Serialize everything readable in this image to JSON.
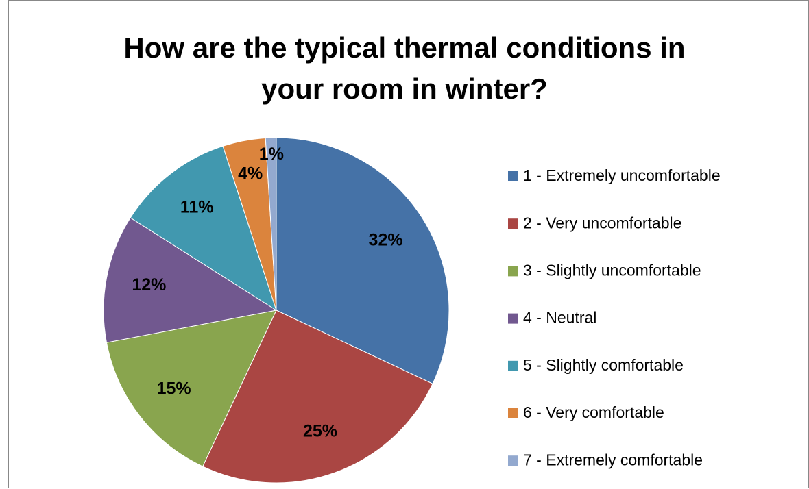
{
  "chart_data": {
    "type": "pie",
    "title": "How are the typical thermal conditions in your room in winter?",
    "categories": [
      "1 - Extremely uncomfortable",
      "2 - Very uncomfortable",
      "3 - Slightly uncomfortable",
      "4 - Neutral",
      "5 - Slightly comfortable",
      "6 - Very comfortable",
      "7 - Extremely comfortable"
    ],
    "values": [
      32,
      25,
      15,
      12,
      11,
      4,
      1
    ],
    "value_labels": [
      "32%",
      "25%",
      "15%",
      "12%",
      "11%",
      "4%",
      "1%"
    ],
    "colors": [
      "#4572a7",
      "#aa4643",
      "#89a54e",
      "#71588f",
      "#4198af",
      "#db843d",
      "#93a9cf"
    ],
    "legend": "right"
  }
}
